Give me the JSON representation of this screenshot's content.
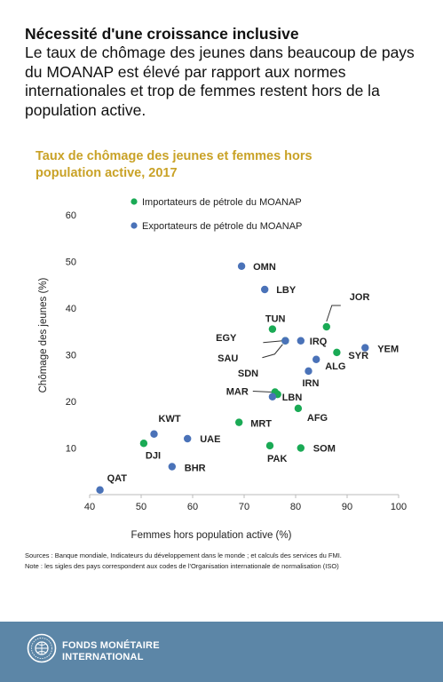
{
  "headline": {
    "title": "Nécessité d'une croissance inclusive",
    "body": "Le taux de chômage des jeunes dans beaucoup de pays du MOANAP est élevé par rapport aux normes internationales et trop de femmes restent hors de la population active."
  },
  "chart_data": {
    "type": "scatter",
    "title": [
      "Taux de chômage des jeunes et femmes hors",
      "population active, 2017"
    ],
    "xlabel": "Femmes hors population active (%)",
    "ylabel": "Chômage  des jeunes (%)",
    "xlim": [
      40,
      100
    ],
    "ylim": [
      0,
      60
    ],
    "xticks": [
      40,
      50,
      60,
      70,
      80,
      90,
      100
    ],
    "yticks": [
      10,
      20,
      30,
      40,
      50,
      60
    ],
    "grid": false,
    "legend_position": "top-left",
    "series": [
      {
        "name": "Importateurs de pétrole du MOANAP",
        "color": "#1aaa55",
        "points": [
          {
            "label": "JOR",
            "x": 86,
            "y": 36
          },
          {
            "label": "TUN",
            "x": 75.5,
            "y": 35.5
          },
          {
            "label": "EGY",
            "x": 78,
            "y": 33
          },
          {
            "label": "SYR",
            "x": 88,
            "y": 30.5
          },
          {
            "label": "LBN",
            "x": 76.5,
            "y": 21.5
          },
          {
            "label": "MAR",
            "x": 76,
            "y": 22
          },
          {
            "label": "AFG",
            "x": 80.5,
            "y": 18.5
          },
          {
            "label": "MRT",
            "x": 69,
            "y": 15.5
          },
          {
            "label": "DJI",
            "x": 50.5,
            "y": 11
          },
          {
            "label": "PAK",
            "x": 75,
            "y": 10.5
          },
          {
            "label": "SOM",
            "x": 81,
            "y": 10
          }
        ]
      },
      {
        "name": "Exportateurs de pétrole du MOANAP",
        "color": "#4a72b8",
        "points": [
          {
            "label": "OMN",
            "x": 69.5,
            "y": 49
          },
          {
            "label": "LBY",
            "x": 74,
            "y": 44
          },
          {
            "label": "SAU",
            "x": 78,
            "y": 33
          },
          {
            "label": "IRQ",
            "x": 81,
            "y": 33
          },
          {
            "label": "YEM",
            "x": 93.5,
            "y": 31.5
          },
          {
            "label": "ALG",
            "x": 84,
            "y": 29
          },
          {
            "label": "IRN",
            "x": 82.5,
            "y": 26.5
          },
          {
            "label": "SDN",
            "x": 75.5,
            "y": 21
          },
          {
            "label": "KWT",
            "x": 52.5,
            "y": 13
          },
          {
            "label": "UAE",
            "x": 59,
            "y": 12
          },
          {
            "label": "BHR",
            "x": 56,
            "y": 6
          },
          {
            "label": "QAT",
            "x": 42,
            "y": 1
          }
        ]
      }
    ]
  },
  "sources": {
    "line1": "Sources : Banque mondiale, Indicateurs du développement dans le monde ; et calculs des services du FMI.",
    "line2": "Note : les sigles des pays correspondent aux codes de l'Organisation internationale de normalisation (ISO)"
  },
  "footer": {
    "line1": "FONDS MONÉTAIRE",
    "line2": "INTERNATIONAL",
    "seal_icon": "imf-seal-icon",
    "background": "#5c86a7"
  }
}
